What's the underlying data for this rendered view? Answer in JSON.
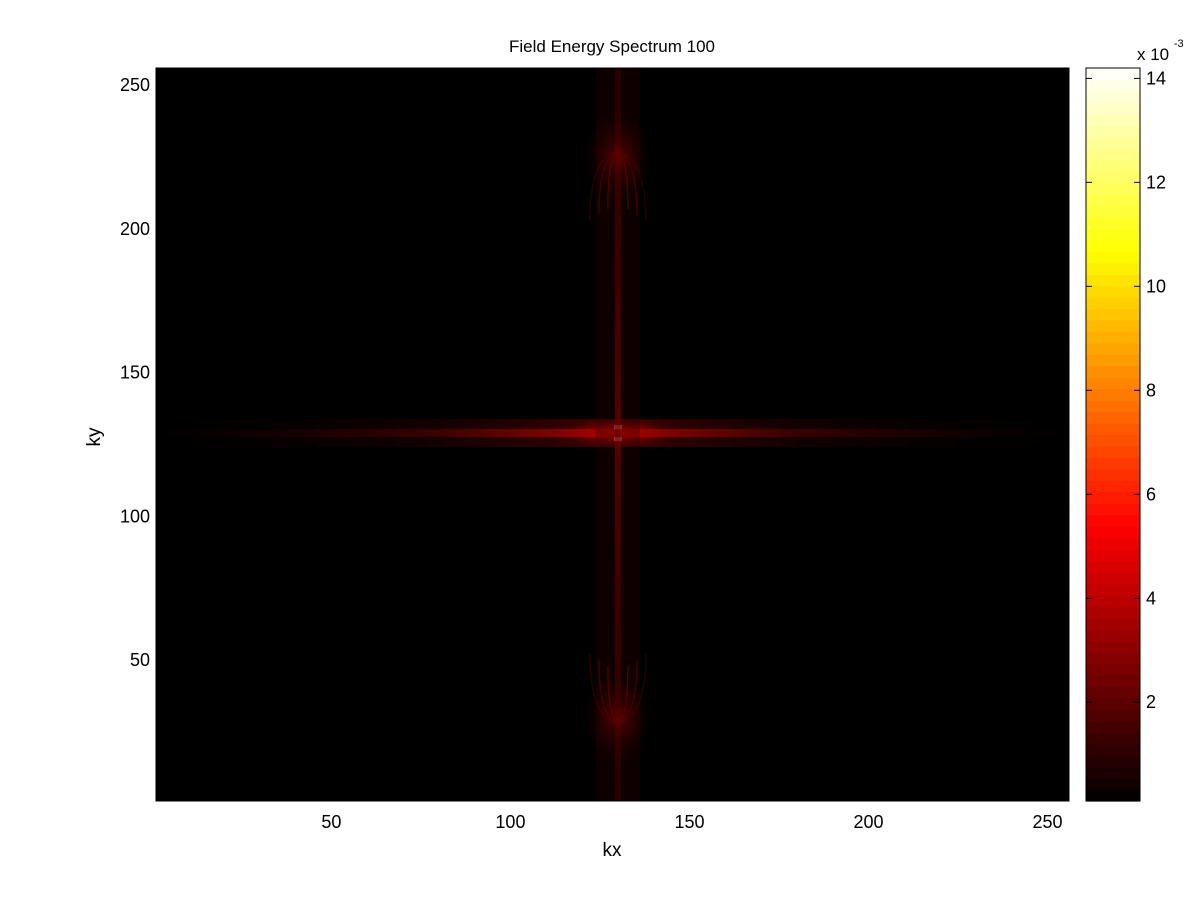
{
  "chart_data": {
    "type": "heatmap",
    "title": "Field Energy Spectrum 100",
    "xlabel": "kx",
    "ylabel": "ky",
    "xlim": [
      1,
      256
    ],
    "ylim": [
      1,
      256
    ],
    "x_ticks": [
      50,
      100,
      150,
      200,
      250
    ],
    "y_ticks": [
      50,
      100,
      150,
      200,
      250
    ],
    "colormap": "hot",
    "colormap_stops": [
      "#000000",
      "#ff0000",
      "#ffff00",
      "#ffffff"
    ],
    "colorbar": {
      "range": [
        0.0001,
        0.0142
      ],
      "ticks": [
        2,
        4,
        6,
        8,
        10,
        12,
        14
      ],
      "exponent_label": "x 10",
      "exponent": "-3"
    },
    "features": [
      {
        "kind": "peak",
        "kx": 130,
        "ky": 129,
        "value": 0.0142
      },
      {
        "kind": "horizontal-ridge",
        "ky": 129,
        "kx_from": 1,
        "kx_to": 256,
        "value": 0.002
      },
      {
        "kind": "vertical-ridge",
        "kx": 130,
        "ky_from": 1,
        "ky_to": 256,
        "value": 0.0008
      },
      {
        "kind": "lobe",
        "kx": 130,
        "ky": 225,
        "value": 0.0012
      },
      {
        "kind": "lobe",
        "kx": 130,
        "ky": 30,
        "value": 0.0012
      }
    ]
  }
}
